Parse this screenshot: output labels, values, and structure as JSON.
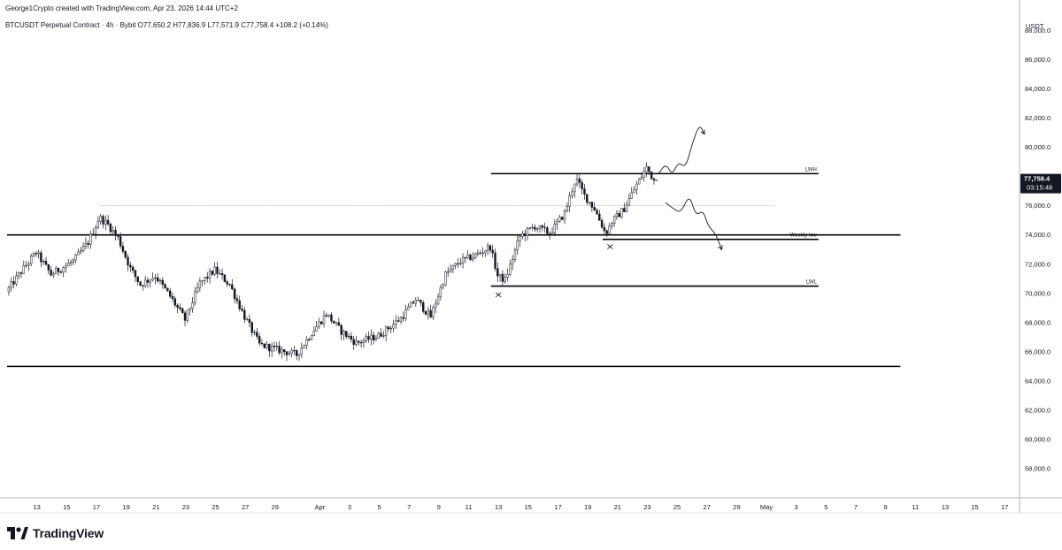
{
  "header": {
    "credit": "George1Crypto created with TradingView.com, Apr 23, 2026 14:44 UTC+2",
    "symbol_line": "BTCUSDT Perpetual Contract · 4h · Bybit  O77,650.2  H77,836.9  L77,571.9  C77,758.4  +108.2 (+0.14%)"
  },
  "footer": {
    "brand": "TradingView",
    "logo_icon": "tradingview-logo-icon"
  },
  "chart_data": {
    "type": "candlestick",
    "symbol": "BTCUSDT Perpetual Contract",
    "interval": "4h",
    "exchange": "Bybit",
    "currency_label": "USDT",
    "ohlc": {
      "open": 77650.2,
      "high": 77836.9,
      "low": 77571.9,
      "close": 77758.4,
      "change": 108.2,
      "change_pct": 0.14
    },
    "last_price_label": "77,758.4",
    "countdown_label": "03:15:48",
    "ylim": [
      56000,
      89000
    ],
    "y_ticks": [
      58000,
      60000,
      62000,
      64000,
      66000,
      68000,
      70000,
      72000,
      74000,
      76000,
      78000,
      80000,
      82000,
      84000,
      86000,
      88000
    ],
    "y_tick_labels": [
      "58,000.0",
      "60,000.0",
      "62,000.0",
      "64,000.0",
      "66,000.0",
      "68,000.0",
      "70,000.0",
      "72,000.0",
      "74,000.0",
      "76,000.0",
      "78,000.0",
      "80,000.0",
      "82,000.0",
      "84,000.0",
      "86,000.0",
      "88,000.0"
    ],
    "x_tick_labels": [
      "13",
      "15",
      "17",
      "19",
      "21",
      "23",
      "25",
      "27",
      "29",
      "Apr",
      "3",
      "5",
      "7",
      "9",
      "11",
      "13",
      "15",
      "17",
      "19",
      "21",
      "23",
      "25",
      "27",
      "29",
      "May",
      "3",
      "5",
      "7",
      "9",
      "11",
      "13",
      "15",
      "17"
    ],
    "x_tick_dates": [
      "2026-03-13",
      "2026-03-15",
      "2026-03-17",
      "2026-03-19",
      "2026-03-21",
      "2026-03-23",
      "2026-03-25",
      "2026-03-27",
      "2026-03-29",
      "2026-04-01",
      "2026-04-03",
      "2026-04-05",
      "2026-04-07",
      "2026-04-09",
      "2026-04-11",
      "2026-04-13",
      "2026-04-15",
      "2026-04-17",
      "2026-04-19",
      "2026-04-21",
      "2026-04-23",
      "2026-04-25",
      "2026-04-27",
      "2026-04-29",
      "2026-05-01",
      "2026-05-03",
      "2026-05-05",
      "2026-05-07",
      "2026-05-09",
      "2026-05-11",
      "2026-05-13",
      "2026-05-15",
      "2026-05-17"
    ],
    "x_range": [
      "2026-03-11",
      "2026-05-18"
    ],
    "price_path": [
      [
        "2026-03-11T00:00",
        70100
      ],
      [
        "2026-03-12T00:00",
        71500
      ],
      [
        "2026-03-13T00:00",
        72800
      ],
      [
        "2026-03-14T00:00",
        71300
      ],
      [
        "2026-03-15T12:00",
        72200
      ],
      [
        "2026-03-16T12:00",
        73500
      ],
      [
        "2026-03-17T06:00",
        75200
      ],
      [
        "2026-03-17T20:00",
        74700
      ],
      [
        "2026-03-18T12:00",
        73800
      ],
      [
        "2026-03-19T08:00",
        71700
      ],
      [
        "2026-03-20T00:00",
        70600
      ],
      [
        "2026-03-21T00:00",
        71200
      ],
      [
        "2026-03-22T00:00",
        69800
      ],
      [
        "2026-03-23T00:00",
        68200
      ],
      [
        "2026-03-24T00:00",
        70700
      ],
      [
        "2026-03-25T00:00",
        71600
      ],
      [
        "2026-03-26T00:00",
        70600
      ],
      [
        "2026-03-27T00:00",
        68400
      ],
      [
        "2026-03-28T00:00",
        66500
      ],
      [
        "2026-03-29T00:00",
        66200
      ],
      [
        "2026-03-30T12:00",
        65800
      ],
      [
        "2026-03-31T12:00",
        67300
      ],
      [
        "2026-04-01T12:00",
        68600
      ],
      [
        "2026-04-02T12:00",
        67400
      ],
      [
        "2026-04-03T12:00",
        66600
      ],
      [
        "2026-04-05T00:00",
        67100
      ],
      [
        "2026-04-06T12:00",
        68300
      ],
      [
        "2026-04-07T12:00",
        69600
      ],
      [
        "2026-04-08T12:00",
        68400
      ],
      [
        "2026-04-09T12:00",
        71300
      ],
      [
        "2026-04-10T12:00",
        72200
      ],
      [
        "2026-04-11T12:00",
        72600
      ],
      [
        "2026-04-12T12:00",
        73200
      ],
      [
        "2026-04-13T00:00",
        71200
      ],
      [
        "2026-04-13T12:00",
        70900
      ],
      [
        "2026-04-14T12:00",
        73900
      ],
      [
        "2026-04-15T12:00",
        74600
      ],
      [
        "2026-04-16T12:00",
        74100
      ],
      [
        "2026-04-17T12:00",
        75500
      ],
      [
        "2026-04-18T06:00",
        77900
      ],
      [
        "2026-04-18T20:00",
        76700
      ],
      [
        "2026-04-19T12:00",
        75800
      ],
      [
        "2026-04-20T06:00",
        74100
      ],
      [
        "2026-04-20T16:00",
        74900
      ],
      [
        "2026-04-21T12:00",
        75800
      ],
      [
        "2026-04-22T06:00",
        77300
      ],
      [
        "2026-04-23T00:00",
        78600
      ],
      [
        "2026-04-23T12:00",
        77760
      ]
    ],
    "x_marks": [
      {
        "date": "2026-04-13T00:00",
        "price": 69900
      },
      {
        "date": "2026-04-20T12:00",
        "price": 73200
      }
    ],
    "levels": [
      {
        "name": "LWH",
        "label": "LWH",
        "price": 78200,
        "from": "2026-04-12T12:00",
        "to": "2026-05-04T12:00",
        "style": "solid"
      },
      {
        "name": "weekly-low",
        "label": "Weekly low",
        "price": 73700,
        "from": "2026-04-20T00:00",
        "to": "2026-05-04T12:00",
        "style": "solid"
      },
      {
        "name": "LWL",
        "label": "LWL",
        "price": 70500,
        "from": "2026-04-12T12:00",
        "to": "2026-05-04T12:00",
        "style": "solid"
      },
      {
        "name": "range-high",
        "label": "",
        "price": 74000,
        "from": "2026-03-11T00:00",
        "to": "2026-05-10T00:00",
        "style": "solid"
      },
      {
        "name": "range-low",
        "label": "",
        "price": 65000,
        "from": "2026-03-11T00:00",
        "to": "2026-05-10T00:00",
        "style": "solid"
      },
      {
        "name": "previous-high",
        "label": "",
        "price": 76000,
        "from": "2026-03-17T06:00",
        "to": "2026-05-01T12:00",
        "style": "dotted"
      }
    ],
    "projections": [
      {
        "name": "bullish-projection",
        "points": [
          [
            "2026-04-23T18:00",
            78200
          ],
          [
            "2026-04-24T06:00",
            78900
          ],
          [
            "2026-04-24T16:00",
            78100
          ],
          [
            "2026-04-25T02:00",
            79000
          ],
          [
            "2026-04-25T14:00",
            78600
          ],
          [
            "2026-04-26T00:00",
            80200
          ],
          [
            "2026-04-26T12:00",
            81600
          ],
          [
            "2026-04-26T20:00",
            80900
          ]
        ],
        "arrow": true
      },
      {
        "name": "bearish-projection",
        "points": [
          [
            "2026-04-24T06:00",
            76200
          ],
          [
            "2026-04-24T18:00",
            75800
          ],
          [
            "2026-04-25T06:00",
            75500
          ],
          [
            "2026-04-25T20:00",
            76800
          ],
          [
            "2026-04-26T06:00",
            75300
          ],
          [
            "2026-04-26T18:00",
            75700
          ],
          [
            "2026-04-27T02:00",
            74600
          ],
          [
            "2026-04-27T14:00",
            74100
          ],
          [
            "2026-04-28T00:00",
            73000
          ]
        ],
        "arrow": true
      }
    ]
  }
}
